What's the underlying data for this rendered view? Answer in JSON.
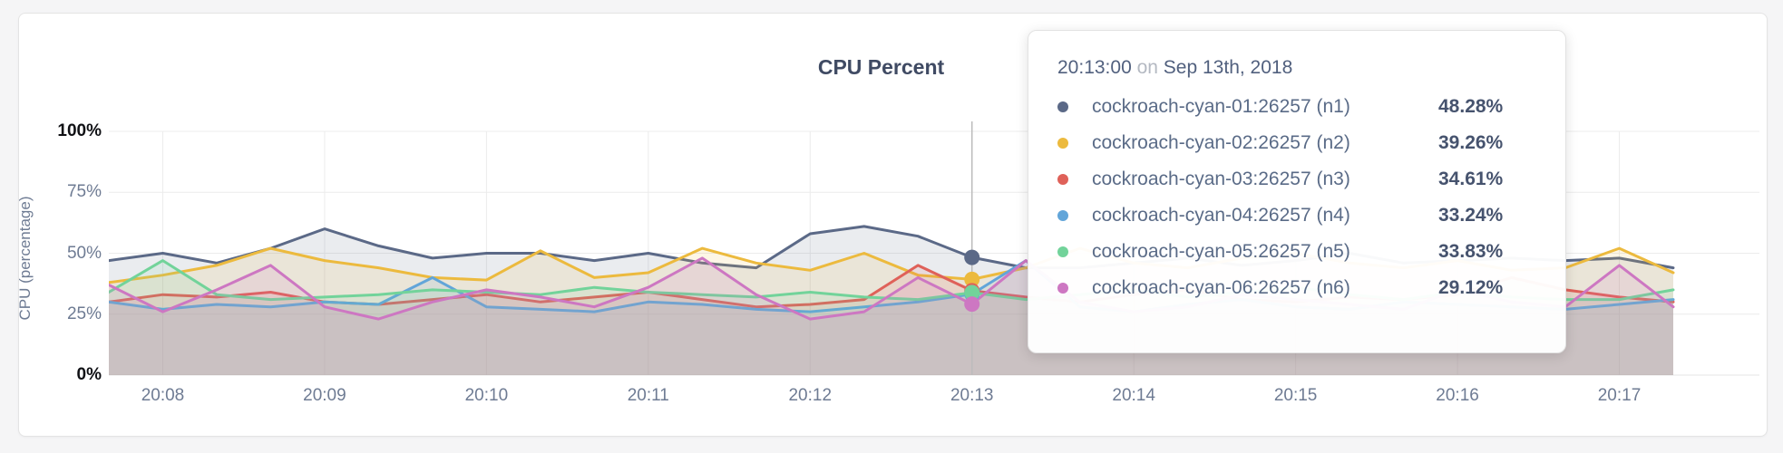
{
  "card": {
    "title": "CPU Percent"
  },
  "y_axis": {
    "label": "CPU (percentage)",
    "ticks": [
      {
        "label": "0%",
        "value": 0,
        "emphasis": true
      },
      {
        "label": "25%",
        "value": 25,
        "emphasis": false
      },
      {
        "label": "50%",
        "value": 50,
        "emphasis": false
      },
      {
        "label": "75%",
        "value": 75,
        "emphasis": false
      },
      {
        "label": "100%",
        "value": 100,
        "emphasis": true
      }
    ]
  },
  "x_axis": {
    "ticks": [
      "20:08",
      "20:09",
      "20:10",
      "20:11",
      "20:12",
      "20:13",
      "20:14",
      "20:15",
      "20:16",
      "20:17"
    ]
  },
  "tooltip": {
    "time": "20:13:00",
    "connector": "on",
    "date": "Sep 13th, 2018",
    "rows": [
      {
        "name": "cockroach-cyan-01:26257 (n1)",
        "value": "48.28%",
        "color": "#5b6987"
      },
      {
        "name": "cockroach-cyan-02:26257 (n2)",
        "value": "39.26%",
        "color": "#ecba3e"
      },
      {
        "name": "cockroach-cyan-03:26257 (n3)",
        "value": "34.61%",
        "color": "#df6159"
      },
      {
        "name": "cockroach-cyan-04:26257 (n4)",
        "value": "33.24%",
        "color": "#62a5d9"
      },
      {
        "name": "cockroach-cyan-05:26257 (n5)",
        "value": "33.83%",
        "color": "#72d39a"
      },
      {
        "name": "cockroach-cyan-06:26257 (n6)",
        "value": "29.12%",
        "color": "#cd77c2"
      }
    ]
  },
  "chart_data": {
    "type": "area",
    "title": "CPU Percent",
    "ylabel": "CPU (percentage)",
    "ylim": [
      0,
      100
    ],
    "grid": true,
    "x_start": "20:07:40",
    "x_end": "20:17:20",
    "x_step_seconds": 20,
    "x_ticks": [
      "20:08",
      "20:09",
      "20:10",
      "20:11",
      "20:12",
      "20:13",
      "20:14",
      "20:15",
      "20:16",
      "20:17"
    ],
    "hover_time": "20:13:00",
    "hover_index": 16,
    "guideline_color": "#bcbcbc",
    "fill_opacity": 0.13,
    "series": [
      {
        "name": "cockroach-cyan-01:26257 (n1)",
        "color": "#5b6987",
        "hover_value": 48.28,
        "values": [
          47,
          50,
          46,
          52,
          60,
          53,
          48,
          50,
          50,
          47,
          50,
          46,
          44,
          58,
          61,
          57,
          48.28,
          44,
          44,
          46,
          48,
          45,
          47,
          50,
          46,
          47,
          48,
          47,
          48,
          44
        ]
      },
      {
        "name": "cockroach-cyan-02:26257 (n2)",
        "color": "#ecba3e",
        "hover_value": 39.26,
        "values": [
          38,
          41,
          45,
          52,
          47,
          44,
          40,
          39,
          51,
          40,
          42,
          52,
          46,
          43,
          50,
          41,
          39.26,
          44,
          52,
          46,
          44,
          48,
          50,
          46,
          44,
          47,
          43,
          44,
          52,
          42
        ]
      },
      {
        "name": "cockroach-cyan-03:26257 (n3)",
        "color": "#df6159",
        "hover_value": 34.61,
        "values": [
          30,
          33,
          32,
          34,
          30,
          29,
          31,
          33,
          30,
          32,
          34,
          31,
          28,
          29,
          31,
          45,
          34.61,
          32,
          30,
          33,
          35,
          31,
          30,
          32,
          31,
          33,
          40,
          35,
          32,
          30
        ]
      },
      {
        "name": "cockroach-cyan-04:26257 (n4)",
        "color": "#62a5d9",
        "hover_value": 33.24,
        "values": [
          30,
          27,
          29,
          28,
          30,
          29,
          40,
          28,
          27,
          26,
          30,
          29,
          27,
          26,
          28,
          30,
          33.24,
          47,
          28,
          26,
          29,
          31,
          28,
          27,
          30,
          29,
          28,
          27,
          29,
          31
        ]
      },
      {
        "name": "cockroach-cyan-05:26257 (n5)",
        "color": "#72d39a",
        "hover_value": 33.83,
        "values": [
          34,
          47,
          33,
          31,
          32,
          33,
          35,
          34,
          33,
          36,
          34,
          33,
          32,
          34,
          32,
          31,
          33.83,
          31,
          33,
          35,
          32,
          34,
          36,
          33,
          31,
          34,
          32,
          31,
          31,
          35
        ]
      },
      {
        "name": "cockroach-cyan-06:26257 (n6)",
        "color": "#cd77c2",
        "hover_value": 29.12,
        "values": [
          37,
          26,
          35,
          45,
          28,
          23,
          30,
          35,
          32,
          28,
          36,
          48,
          33,
          23,
          26,
          40,
          29.12,
          47,
          30,
          26,
          28,
          33,
          31,
          29,
          27,
          35,
          30,
          28,
          45,
          28
        ]
      }
    ]
  }
}
